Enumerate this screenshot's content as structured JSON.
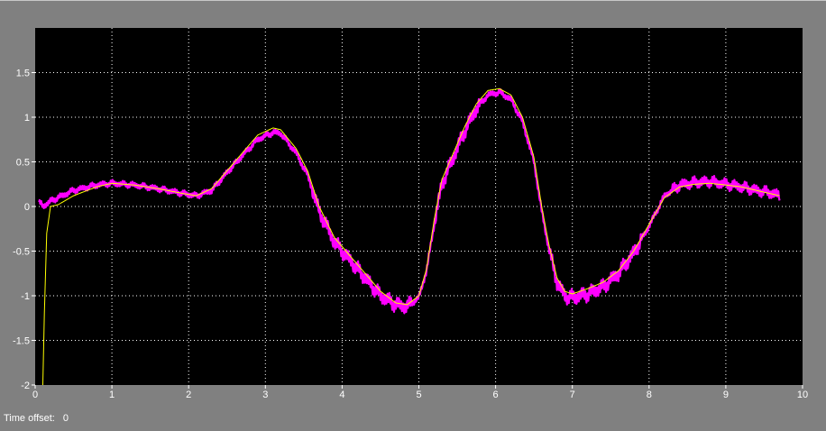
{
  "window": {
    "time_offset_label": "Time offset:",
    "time_offset_value": "0"
  },
  "colors": {
    "background": "#808080",
    "plot_background": "#000000",
    "grid": "#ffffff",
    "axis_text": "#ffffff",
    "series_reference": "#ffff00",
    "series_measured": "#ff00ff"
  },
  "chart_data": {
    "type": "line",
    "title": "",
    "xlabel": "",
    "ylabel": "",
    "xlim": [
      0,
      10
    ],
    "ylim": [
      -2,
      2
    ],
    "grid": true,
    "grid_style": "dotted",
    "x_ticks": [
      0,
      1,
      2,
      3,
      4,
      5,
      6,
      7,
      8,
      9,
      10
    ],
    "x_tick_labels": [
      "0",
      "1",
      "2",
      "3",
      "4",
      "5",
      "6",
      "7",
      "8",
      "9",
      "10"
    ],
    "y_ticks": [
      -2,
      -1.5,
      -1,
      -0.5,
      0,
      0.5,
      1,
      1.5
    ],
    "y_tick_labels": [
      "-2",
      "-1.5",
      "-1",
      "-0.5",
      "0",
      "0.5",
      "1",
      "1.5"
    ],
    "series": [
      {
        "color": "#ffff00",
        "style": "thin",
        "x": [
          0.1,
          0.12,
          0.15,
          0.2,
          0.3,
          0.5,
          0.8,
          1.0,
          1.3,
          1.6,
          1.9,
          2.1,
          2.3,
          2.5,
          2.7,
          2.9,
          3.1,
          3.2,
          3.4,
          3.55,
          3.7,
          3.9,
          4.1,
          4.3,
          4.5,
          4.7,
          4.85,
          5.0,
          5.1,
          5.2,
          5.3,
          5.45,
          5.6,
          5.75,
          5.9,
          6.05,
          6.2,
          6.35,
          6.5,
          6.6,
          6.7,
          6.8,
          6.9,
          7.0,
          7.2,
          7.4,
          7.6,
          7.8,
          8.0,
          8.2,
          8.4,
          8.6,
          8.8,
          9.0,
          9.2,
          9.4,
          9.6,
          9.7
        ],
        "y": [
          -2.0,
          -1.2,
          -0.3,
          0.0,
          0.02,
          0.12,
          0.22,
          0.26,
          0.24,
          0.2,
          0.15,
          0.12,
          0.2,
          0.4,
          0.6,
          0.8,
          0.88,
          0.86,
          0.65,
          0.4,
          0.0,
          -0.35,
          -0.55,
          -0.75,
          -0.95,
          -1.08,
          -1.1,
          -1.0,
          -0.7,
          -0.15,
          0.3,
          0.6,
          0.9,
          1.15,
          1.3,
          1.32,
          1.25,
          1.0,
          0.55,
          0.0,
          -0.45,
          -0.8,
          -0.95,
          -0.98,
          -0.92,
          -0.85,
          -0.72,
          -0.5,
          -0.2,
          0.1,
          0.22,
          0.25,
          0.26,
          0.24,
          0.22,
          0.18,
          0.14,
          0.12
        ]
      },
      {
        "color": "#ff00ff",
        "style": "noisy",
        "x": [
          0.05,
          0.1,
          0.15,
          0.2,
          0.3,
          0.5,
          0.8,
          1.0,
          1.3,
          1.6,
          1.9,
          2.1,
          2.3,
          2.5,
          2.7,
          2.9,
          3.1,
          3.2,
          3.4,
          3.55,
          3.7,
          3.9,
          4.1,
          4.3,
          4.5,
          4.7,
          4.85,
          5.0,
          5.1,
          5.2,
          5.3,
          5.45,
          5.6,
          5.75,
          5.9,
          6.05,
          6.2,
          6.35,
          6.5,
          6.6,
          6.7,
          6.8,
          6.9,
          7.0,
          7.2,
          7.4,
          7.6,
          7.8,
          8.0,
          8.2,
          8.4,
          8.6,
          8.8,
          9.0,
          9.2,
          9.4,
          9.6,
          9.7
        ],
        "y": [
          0.05,
          0.0,
          0.03,
          0.06,
          0.1,
          0.18,
          0.24,
          0.26,
          0.24,
          0.2,
          0.15,
          0.12,
          0.18,
          0.38,
          0.57,
          0.75,
          0.83,
          0.82,
          0.6,
          0.35,
          -0.05,
          -0.4,
          -0.6,
          -0.8,
          -1.0,
          -1.1,
          -1.12,
          -1.02,
          -0.72,
          -0.2,
          0.25,
          0.55,
          0.85,
          1.1,
          1.25,
          1.28,
          1.2,
          0.95,
          0.5,
          -0.05,
          -0.5,
          -0.85,
          -1.0,
          -1.02,
          -0.98,
          -0.9,
          -0.75,
          -0.52,
          -0.22,
          0.12,
          0.24,
          0.27,
          0.28,
          0.25,
          0.22,
          0.18,
          0.15,
          0.12
        ]
      }
    ]
  }
}
